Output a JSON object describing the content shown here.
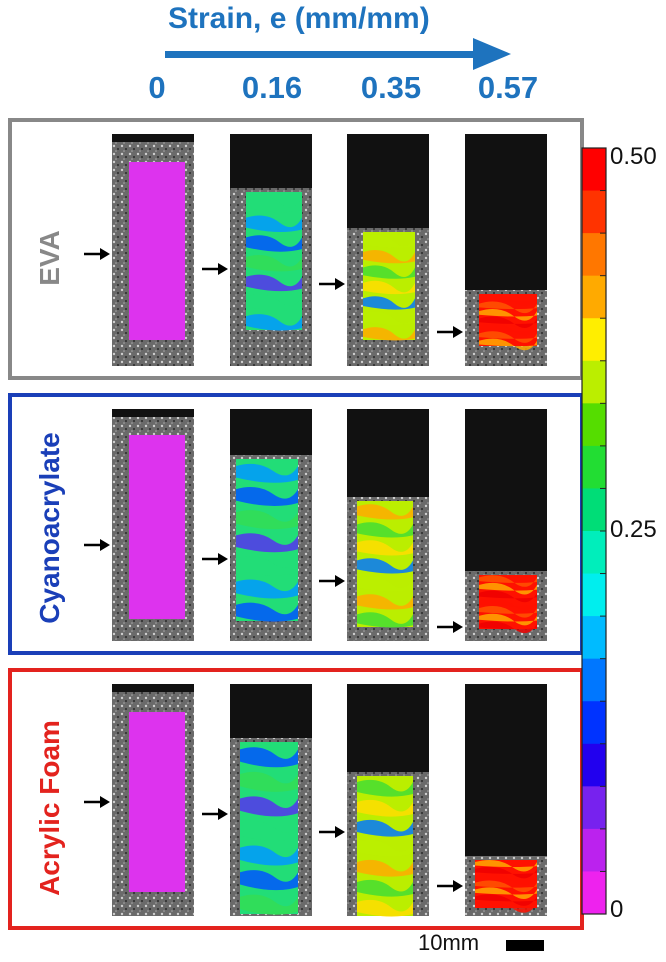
{
  "header": {
    "axis_title": "Strain, e (mm/mm)",
    "strain_values": [
      "0",
      "0.16",
      "0.35",
      "0.57"
    ]
  },
  "rows": [
    {
      "label": "EVA",
      "color": "#888888"
    },
    {
      "label": "Cyanoacrylate",
      "color": "#1a3fb8"
    },
    {
      "label": "Acrylic Foam",
      "color": "#e3231e"
    }
  ],
  "colorbar": {
    "max_label": "0.50",
    "mid_label": "0.25",
    "min_label": "0",
    "colors": [
      "#ff0000",
      "#ff3300",
      "#ff7700",
      "#ffaa00",
      "#ffee00",
      "#bbee00",
      "#55dd00",
      "#22dd33",
      "#00dd77",
      "#00eebb",
      "#00eeee",
      "#00bbff",
      "#0077ff",
      "#0033ff",
      "#2200ee",
      "#7722ee",
      "#bb22ee",
      "#ee22ee"
    ]
  },
  "scale_bar": {
    "label": "10mm"
  }
}
